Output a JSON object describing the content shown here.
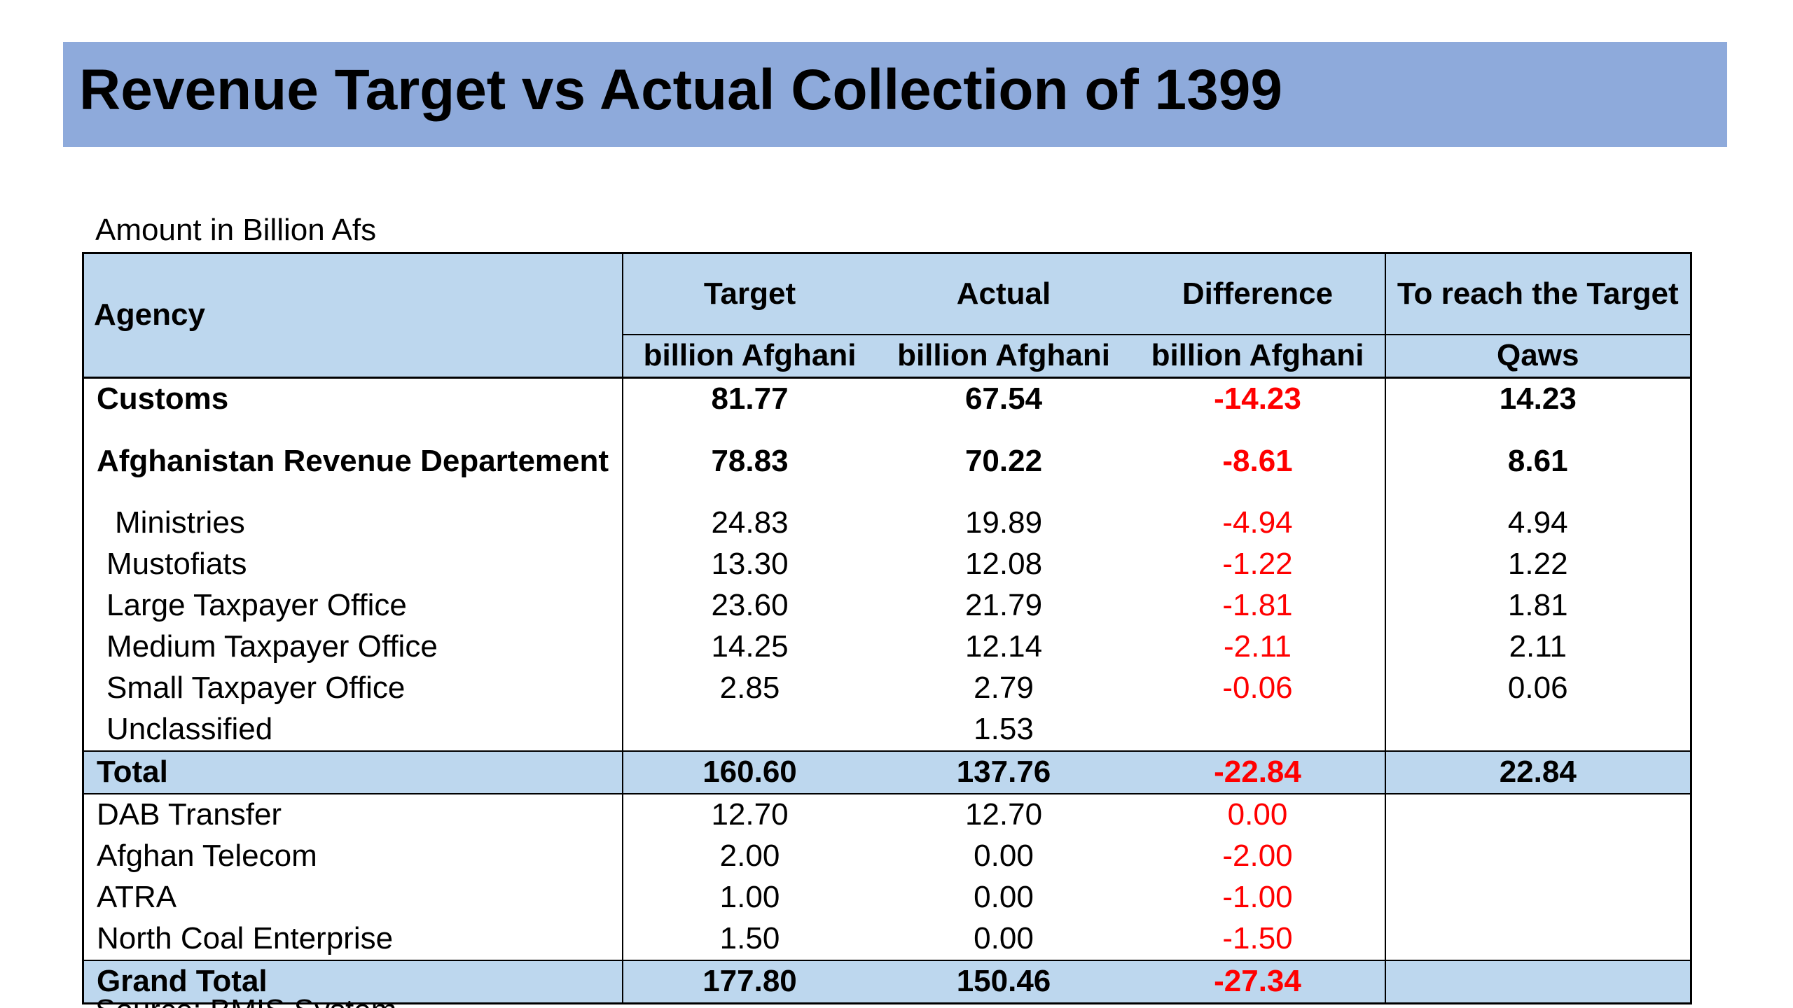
{
  "slide": {
    "title": "Revenue Target vs Actual Collection of 1399",
    "unit_note": "Amount in Billion Afs",
    "source_note": "Source: BMIS System"
  },
  "colors": {
    "title_bar": "#8eaadb",
    "header_fill": "#bdd7ee",
    "negative_text": "#ff0000"
  },
  "table": {
    "headers": {
      "agency": "Agency",
      "target": "Target",
      "actual": "Actual",
      "difference": "Difference",
      "reach": "To reach the Target"
    },
    "units": {
      "target": "billion Afghani",
      "actual": "billion Afghani",
      "difference": "billion Afghani",
      "reach": "Qaws"
    },
    "rows": [
      {
        "agency": "Customs",
        "target": "81.77",
        "actual": "67.54",
        "difference": "-14.23",
        "reach": "14.23"
      },
      {
        "agency": "Afghanistan Revenue Departement",
        "target": "78.83",
        "actual": "70.22",
        "difference": "-8.61",
        "reach": "8.61"
      },
      {
        "agency": "Ministries",
        "target": "24.83",
        "actual": "19.89",
        "difference": "-4.94",
        "reach": "4.94"
      },
      {
        "agency": "Mustofiats",
        "target": "13.30",
        "actual": "12.08",
        "difference": "-1.22",
        "reach": "1.22"
      },
      {
        "agency": "Large Taxpayer Office",
        "target": "23.60",
        "actual": "21.79",
        "difference": "-1.81",
        "reach": "1.81"
      },
      {
        "agency": "Medium Taxpayer Office",
        "target": "14.25",
        "actual": "12.14",
        "difference": "-2.11",
        "reach": "2.11"
      },
      {
        "agency": "Small Taxpayer Office",
        "target": "2.85",
        "actual": "2.79",
        "difference": "-0.06",
        "reach": "0.06"
      },
      {
        "agency": "Unclassified",
        "target": "",
        "actual": "1.53",
        "difference": "",
        "reach": ""
      },
      {
        "agency": "Total",
        "target": "160.60",
        "actual": "137.76",
        "difference": "-22.84",
        "reach": "22.84"
      },
      {
        "agency": "DAB Transfer",
        "target": "12.70",
        "actual": "12.70",
        "difference": "0.00",
        "reach": ""
      },
      {
        "agency": "Afghan Telecom",
        "target": "2.00",
        "actual": "0.00",
        "difference": "-2.00",
        "reach": ""
      },
      {
        "agency": "ATRA",
        "target": "1.00",
        "actual": "0.00",
        "difference": "-1.00",
        "reach": ""
      },
      {
        "agency": "North Coal Enterprise",
        "target": "1.50",
        "actual": "0.00",
        "difference": "-1.50",
        "reach": ""
      },
      {
        "agency": "Grand Total",
        "target": "177.80",
        "actual": "150.46",
        "difference": "-27.34",
        "reach": ""
      }
    ]
  }
}
